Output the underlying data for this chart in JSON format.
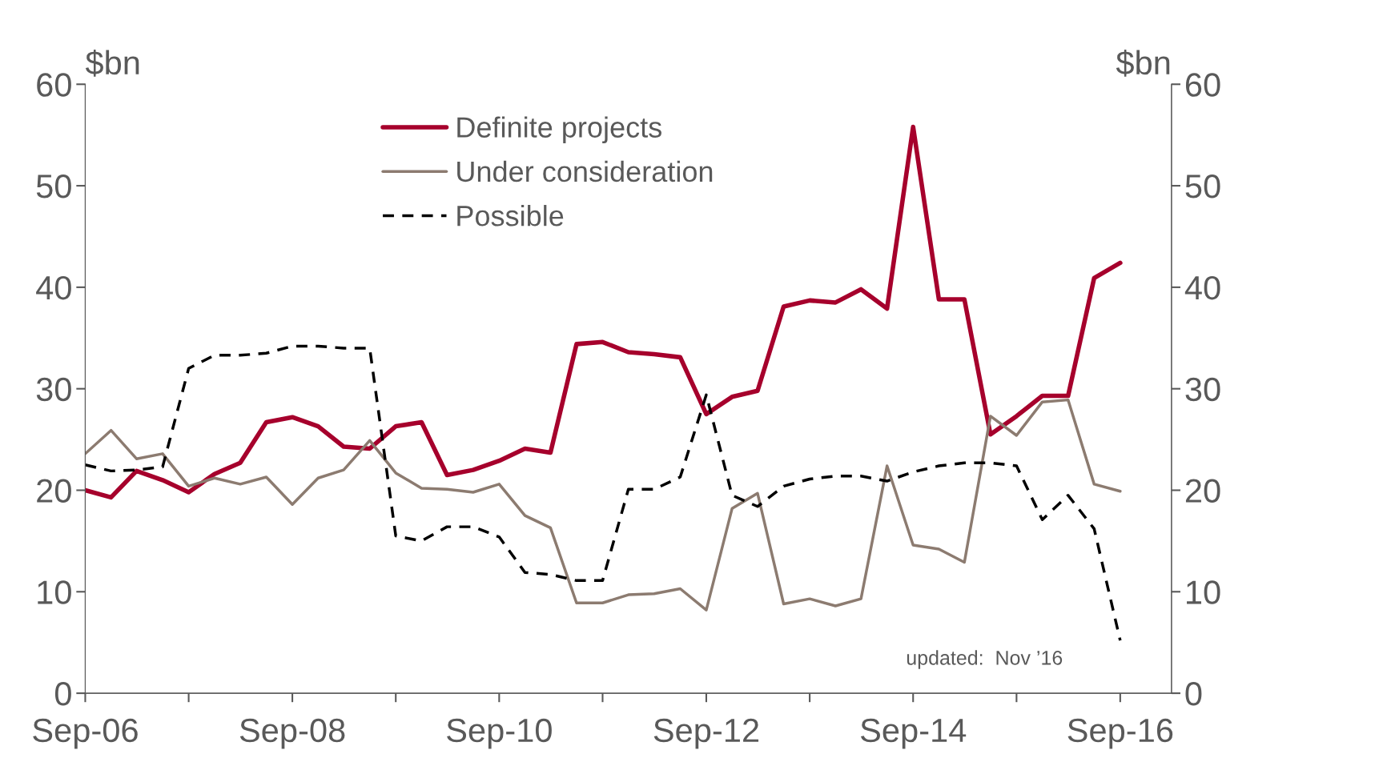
{
  "chart_data": {
    "type": "line",
    "ylabel": "$bn",
    "y2label": "$bn",
    "x": [
      "2006-09",
      "2006-12",
      "2007-03",
      "2007-06",
      "2007-09",
      "2007-12",
      "2008-03",
      "2008-06",
      "2008-09",
      "2008-12",
      "2009-03",
      "2009-06",
      "2009-09",
      "2009-12",
      "2010-03",
      "2010-06",
      "2010-09",
      "2010-12",
      "2011-03",
      "2011-06",
      "2011-09",
      "2011-12",
      "2012-03",
      "2012-06",
      "2012-09",
      "2012-12",
      "2013-03",
      "2013-06",
      "2013-09",
      "2013-12",
      "2014-03",
      "2014-06",
      "2014-09",
      "2014-12",
      "2015-03",
      "2015-06",
      "2015-09",
      "2015-12",
      "2016-03",
      "2016-06",
      "2016-09"
    ],
    "series": [
      {
        "name": "Definite projects",
        "color": "#a6002c",
        "line_style": "solid",
        "values": [
          20.0,
          19.3,
          21.9,
          21.0,
          19.8,
          21.6,
          22.7,
          26.7,
          27.2,
          26.3,
          24.3,
          24.1,
          26.3,
          26.7,
          21.5,
          22.0,
          22.9,
          24.1,
          23.7,
          34.4,
          34.6,
          33.6,
          33.4,
          33.1,
          27.5,
          29.2,
          29.8,
          38.1,
          38.7,
          38.5,
          39.8,
          37.9,
          55.8,
          38.8,
          38.8,
          25.5,
          27.3,
          29.3,
          29.3,
          40.9,
          42.4
        ]
      },
      {
        "name": "Under consideration",
        "color": "#8c7b70",
        "line_style": "solid",
        "values": [
          23.6,
          25.9,
          23.1,
          23.6,
          20.4,
          21.2,
          20.6,
          21.3,
          18.6,
          21.2,
          22.0,
          24.9,
          21.7,
          20.2,
          20.1,
          19.8,
          20.6,
          17.5,
          16.3,
          8.9,
          8.9,
          9.7,
          9.8,
          10.3,
          8.2,
          18.2,
          19.7,
          8.8,
          9.3,
          8.6,
          9.3,
          22.4,
          14.6,
          14.2,
          12.9,
          27.3,
          25.4,
          28.7,
          28.9,
          20.6,
          19.9
        ]
      },
      {
        "name": "Possible",
        "color": "#000000",
        "line_style": "dashed",
        "values": [
          22.5,
          21.9,
          22.0,
          22.3,
          32.0,
          33.3,
          33.3,
          33.5,
          34.2,
          34.2,
          34.0,
          34.0,
          15.5,
          15.0,
          16.4,
          16.4,
          15.4,
          11.9,
          11.7,
          11.1,
          11.1,
          20.1,
          20.1,
          21.3,
          29.4,
          19.5,
          18.4,
          20.4,
          21.1,
          21.4,
          21.4,
          20.9,
          21.8,
          22.4,
          22.7,
          22.7,
          22.4,
          17.1,
          19.5,
          16.2,
          5.2
        ]
      }
    ],
    "xlim": [
      "2006-09",
      "2017-03"
    ],
    "xticks": [
      {
        "value": "2006-09",
        "label": "Sep-06"
      },
      {
        "value": "2007-09",
        "label": null
      },
      {
        "value": "2008-09",
        "label": "Sep-08"
      },
      {
        "value": "2009-09",
        "label": null
      },
      {
        "value": "2010-09",
        "label": "Sep-10"
      },
      {
        "value": "2011-09",
        "label": null
      },
      {
        "value": "2012-09",
        "label": "Sep-12"
      },
      {
        "value": "2013-09",
        "label": null
      },
      {
        "value": "2014-09",
        "label": "Sep-14"
      },
      {
        "value": "2015-09",
        "label": null
      },
      {
        "value": "2016-09",
        "label": "Sep-16"
      }
    ],
    "ylim": [
      0,
      60
    ],
    "yticks": [
      0,
      10,
      20,
      30,
      40,
      50,
      60
    ],
    "y2lim": [
      0,
      60
    ],
    "y2ticks": [
      0,
      10,
      20,
      30,
      40,
      50,
      60
    ],
    "grid": false,
    "legend": "top",
    "marker": "none",
    "annotations": [
      "updated:  Nov ’16"
    ]
  }
}
